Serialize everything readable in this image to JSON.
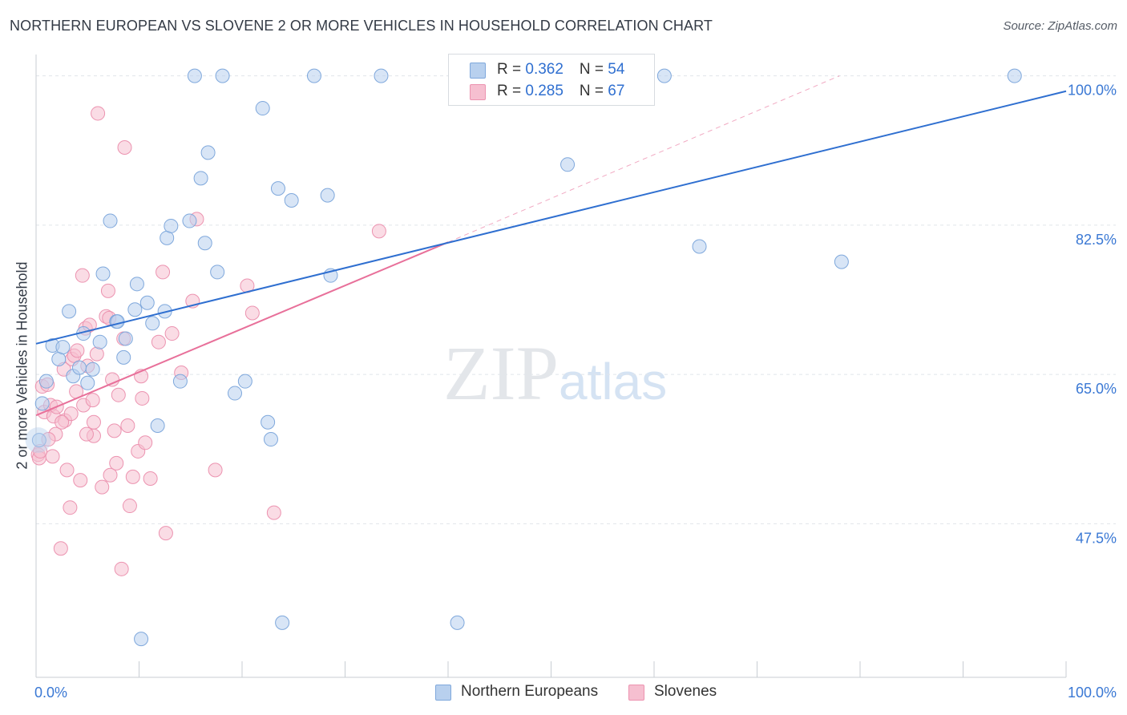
{
  "header": {
    "title": "NORTHERN EUROPEAN VS SLOVENE 2 OR MORE VEHICLES IN HOUSEHOLD CORRELATION CHART",
    "source": "Source: ZipAtlas.com"
  },
  "watermark": {
    "part1": "ZIP",
    "part2": "atlas"
  },
  "legend": {
    "rows": [
      {
        "r_label": "R = ",
        "r_value": "0.362",
        "n_label": "N = ",
        "n_value": "54"
      },
      {
        "r_label": "R = ",
        "r_value": "0.285",
        "n_label": "N = ",
        "n_value": "67"
      }
    ]
  },
  "bottom_legend": {
    "series1": "Northern Europeans",
    "series2": "Slovenes"
  },
  "colors": {
    "blue_fill": "#b8d0ee",
    "blue_stroke": "#7fa8dc",
    "blue_line": "#2f6fd0",
    "pink_fill": "#f6bfd0",
    "pink_stroke": "#ec93b0",
    "pink_line": "#e8709a",
    "grid": "#e1e5ea",
    "axis_text": "#3a78d4"
  },
  "chart_data": {
    "type": "scatter",
    "title": "NORTHERN EUROPEAN VS SLOVENE 2 OR MORE VEHICLES IN HOUSEHOLD CORRELATION CHART",
    "xlabel": "",
    "ylabel": "2 or more Vehicles in Household",
    "xlim": [
      0,
      100
    ],
    "ylim": [
      29.5,
      102.5
    ],
    "x_tick_labels": [
      "0.0%",
      "100.0%"
    ],
    "y_ticks": [
      47.5,
      65.0,
      82.5,
      100.0
    ],
    "y_tick_labels": [
      "47.5%",
      "65.0%",
      "82.5%",
      "100.0%"
    ],
    "grid": true,
    "legend_position": "top-center",
    "series": [
      {
        "name": "Northern Europeans",
        "r": 0.362,
        "n": 54,
        "trend": {
          "x": [
            0,
            100
          ],
          "y": [
            68.6,
            98.2
          ]
        },
        "points": [
          [
            0.3,
            57.3
          ],
          [
            0.6,
            61.6
          ],
          [
            1.0,
            64.2
          ],
          [
            1.6,
            68.4
          ],
          [
            2.2,
            66.8
          ],
          [
            2.6,
            68.2
          ],
          [
            3.2,
            72.4
          ],
          [
            3.6,
            64.8
          ],
          [
            4.2,
            65.8
          ],
          [
            4.6,
            69.8
          ],
          [
            5.0,
            64.0
          ],
          [
            5.5,
            65.6
          ],
          [
            6.2,
            68.8
          ],
          [
            6.5,
            76.8
          ],
          [
            7.2,
            83.0
          ],
          [
            7.8,
            71.2
          ],
          [
            8.5,
            67.0
          ],
          [
            8.7,
            69.2
          ],
          [
            9.6,
            72.6
          ],
          [
            9.8,
            75.6
          ],
          [
            10.8,
            73.4
          ],
          [
            11.3,
            71.0
          ],
          [
            11.8,
            59.0
          ],
          [
            12.5,
            72.4
          ],
          [
            12.7,
            81.0
          ],
          [
            13.1,
            82.4
          ],
          [
            14.0,
            64.2
          ],
          [
            14.9,
            83.0
          ],
          [
            15.4,
            100.0
          ],
          [
            16.0,
            88.0
          ],
          [
            16.4,
            80.4
          ],
          [
            16.7,
            91.0
          ],
          [
            17.6,
            77.0
          ],
          [
            18.1,
            100.0
          ],
          [
            19.3,
            62.8
          ],
          [
            20.3,
            64.2
          ],
          [
            22.0,
            96.2
          ],
          [
            22.5,
            59.4
          ],
          [
            22.8,
            57.4
          ],
          [
            23.5,
            86.8
          ],
          [
            24.8,
            85.4
          ],
          [
            27.0,
            100.0
          ],
          [
            28.3,
            86.0
          ],
          [
            28.6,
            76.6
          ],
          [
            33.5,
            100.0
          ],
          [
            10.2,
            34.0
          ],
          [
            23.9,
            35.9
          ],
          [
            40.9,
            35.9
          ],
          [
            51.6,
            89.6
          ],
          [
            61.0,
            100.0
          ],
          [
            64.4,
            80.0
          ],
          [
            78.2,
            78.2
          ],
          [
            95.0,
            100.0
          ],
          [
            7.9,
            71.2
          ]
        ]
      },
      {
        "name": "Slovenes",
        "r": 0.285,
        "n": 67,
        "trend": {
          "x": [
            0,
            40
          ],
          "y": [
            60.2,
            80.5
          ]
        },
        "trend_extension": {
          "x": [
            40,
            78
          ],
          "y": [
            80.5,
            100.0
          ]
        },
        "points": [
          [
            0.2,
            55.6
          ],
          [
            0.3,
            55.2
          ],
          [
            0.4,
            56.0
          ],
          [
            0.6,
            63.6
          ],
          [
            0.8,
            60.6
          ],
          [
            1.1,
            63.8
          ],
          [
            1.4,
            61.4
          ],
          [
            1.6,
            55.4
          ],
          [
            1.7,
            60.1
          ],
          [
            1.9,
            58.0
          ],
          [
            2.0,
            61.2
          ],
          [
            2.4,
            44.6
          ],
          [
            2.7,
            65.6
          ],
          [
            2.8,
            59.6
          ],
          [
            3.0,
            53.8
          ],
          [
            3.3,
            49.4
          ],
          [
            3.4,
            60.4
          ],
          [
            3.5,
            66.8
          ],
          [
            3.7,
            67.2
          ],
          [
            4.0,
            67.8
          ],
          [
            4.3,
            52.6
          ],
          [
            4.6,
            61.4
          ],
          [
            4.8,
            70.4
          ],
          [
            4.5,
            76.6
          ],
          [
            5.0,
            66.0
          ],
          [
            5.2,
            70.8
          ],
          [
            5.5,
            62.0
          ],
          [
            5.6,
            59.4
          ],
          [
            5.9,
            67.4
          ],
          [
            6.0,
            95.6
          ],
          [
            6.4,
            51.8
          ],
          [
            6.8,
            71.8
          ],
          [
            7.0,
            74.8
          ],
          [
            7.2,
            53.2
          ],
          [
            7.4,
            64.4
          ],
          [
            7.6,
            58.4
          ],
          [
            7.8,
            54.6
          ],
          [
            8.0,
            62.6
          ],
          [
            8.3,
            42.2
          ],
          [
            8.5,
            69.2
          ],
          [
            8.6,
            91.6
          ],
          [
            8.9,
            59.0
          ],
          [
            9.1,
            49.6
          ],
          [
            9.4,
            53.0
          ],
          [
            9.9,
            56.0
          ],
          [
            10.2,
            64.8
          ],
          [
            10.3,
            62.2
          ],
          [
            10.6,
            57.0
          ],
          [
            11.1,
            52.8
          ],
          [
            11.9,
            68.8
          ],
          [
            12.3,
            77.0
          ],
          [
            12.6,
            46.4
          ],
          [
            13.2,
            69.8
          ],
          [
            14.1,
            65.2
          ],
          [
            15.2,
            73.6
          ],
          [
            15.6,
            83.2
          ],
          [
            17.4,
            53.8
          ],
          [
            20.5,
            75.4
          ],
          [
            21.0,
            72.2
          ],
          [
            23.1,
            48.8
          ],
          [
            33.3,
            81.8
          ],
          [
            7.1,
            71.6
          ],
          [
            5.6,
            57.8
          ],
          [
            4.9,
            58.0
          ],
          [
            3.9,
            63.0
          ],
          [
            2.5,
            59.4
          ],
          [
            1.2,
            57.4
          ]
        ]
      }
    ]
  }
}
